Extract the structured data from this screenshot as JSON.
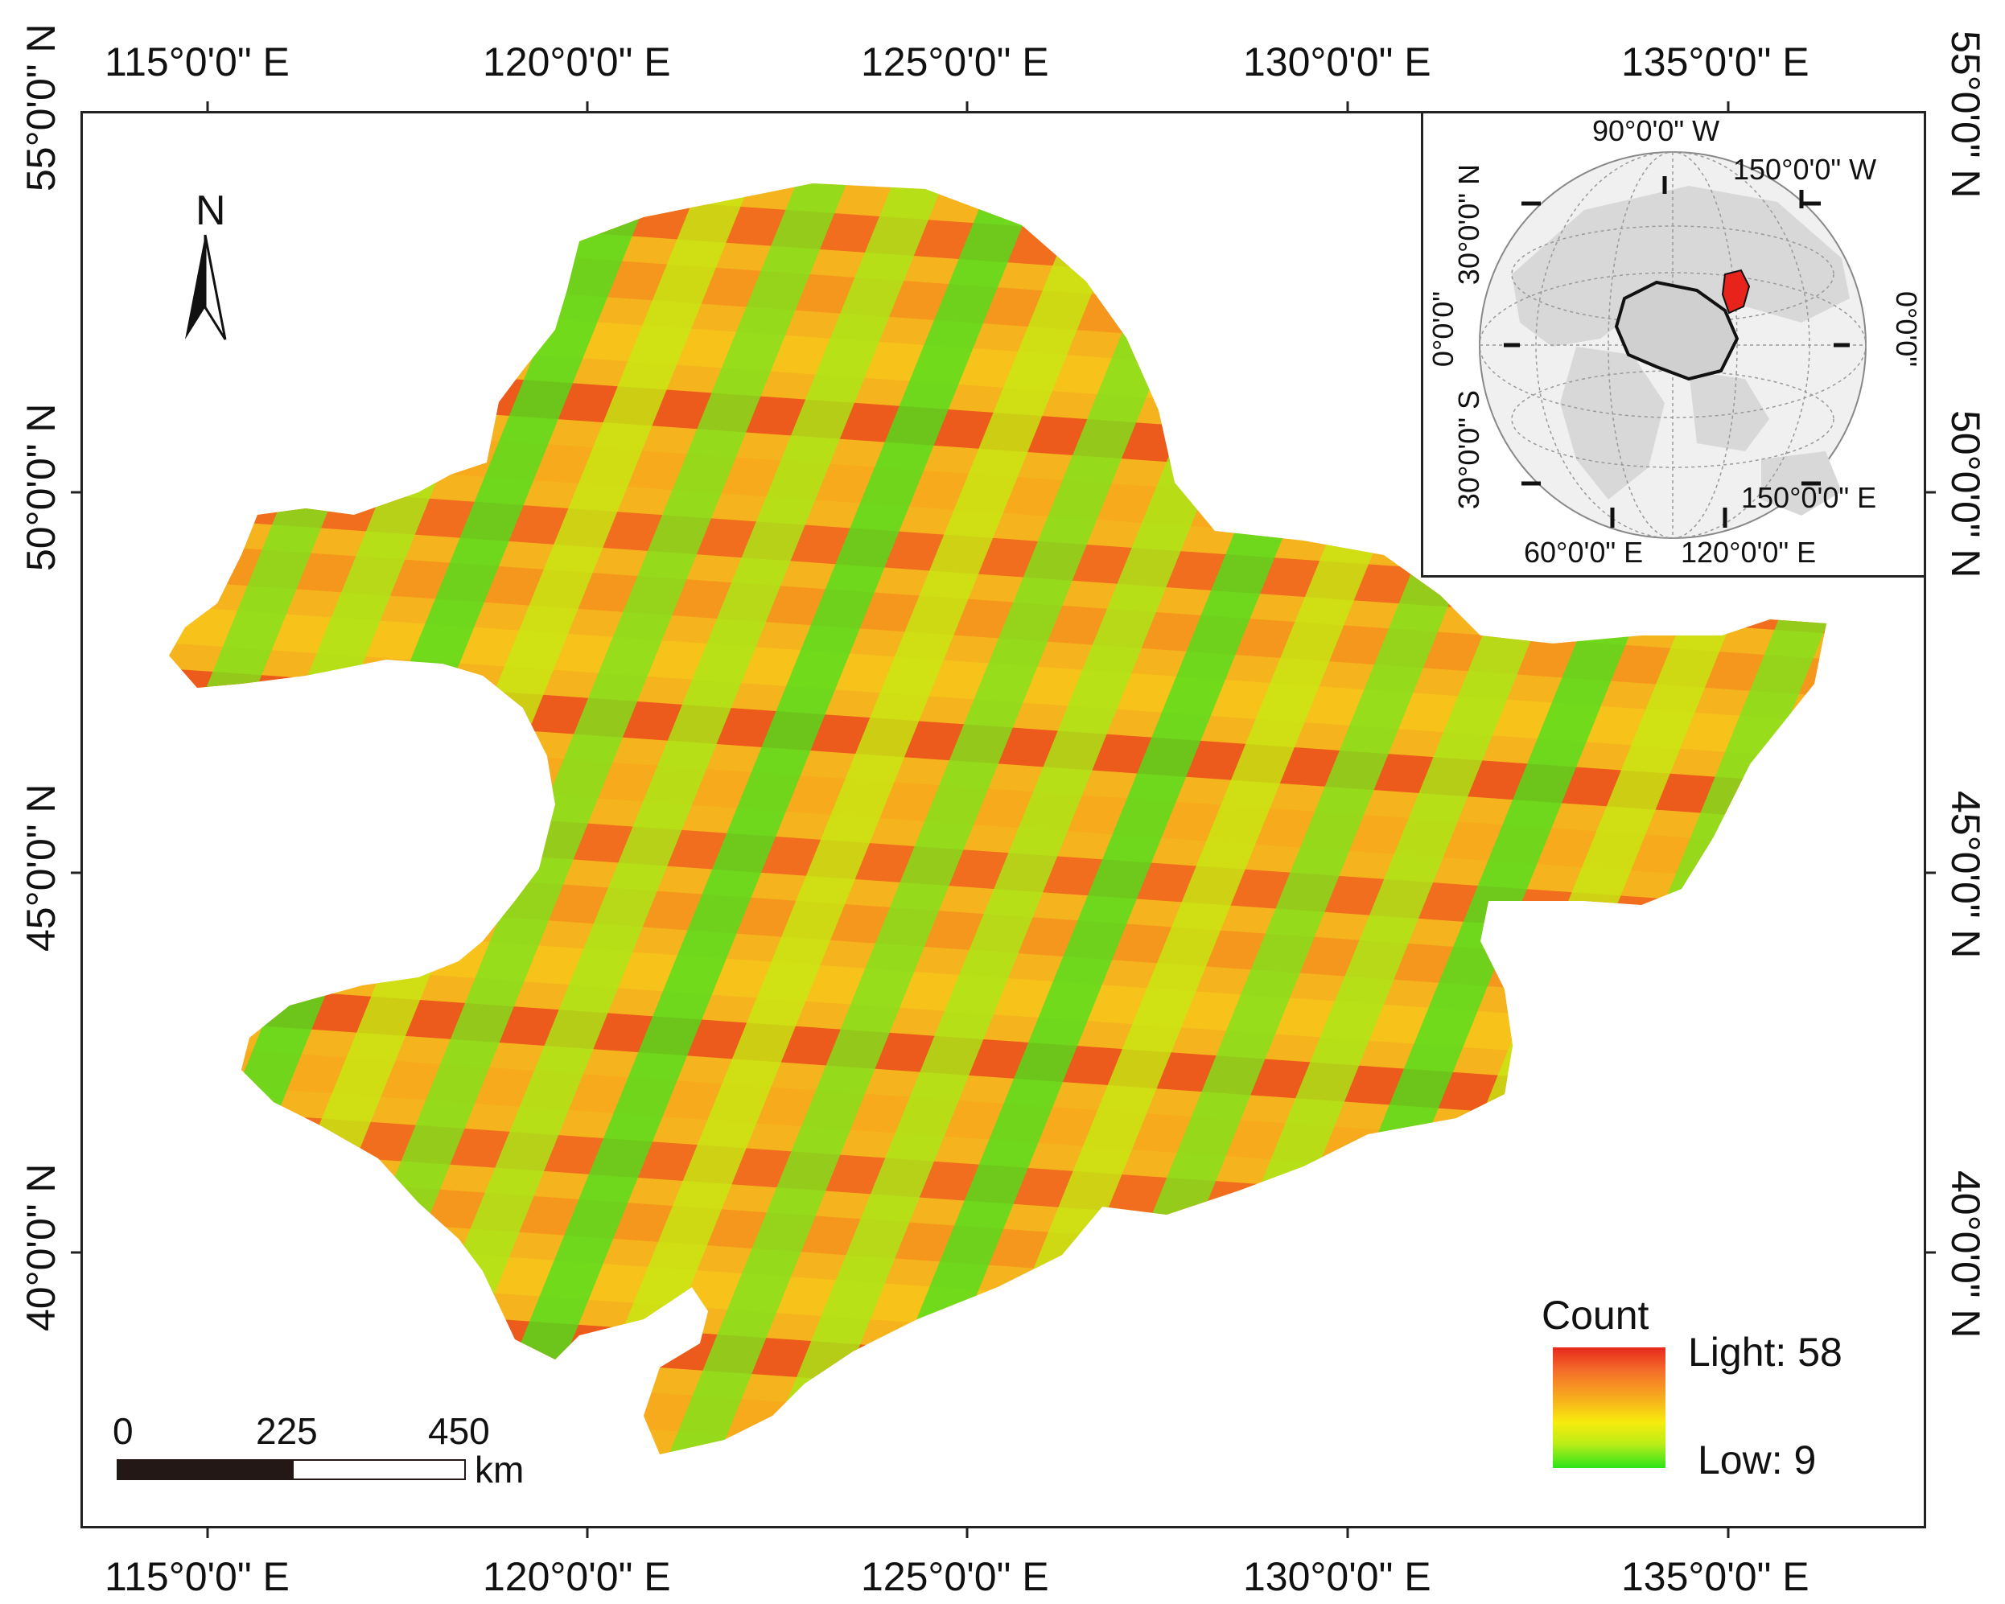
{
  "map": {
    "lon_labels": [
      "115°0'0\" E",
      "120°0'0\" E",
      "125°0'0\" E",
      "130°0'0\" E",
      "135°0'0\" E"
    ],
    "lat_labels": [
      "55°0'0\" N",
      "50°0'0\" N",
      "45°0'0\" N",
      "40°0'0\" N"
    ],
    "north_arrow": {
      "letter": "N",
      "icon": "north-arrow-icon"
    },
    "scale_bar": {
      "ticks": [
        "0",
        "225",
        "450"
      ],
      "unit": "km"
    },
    "legend": {
      "title": "Count",
      "high_label": "Light: 58",
      "low_label": "Low: 9",
      "high_color": "#e6281c",
      "mid_color": "#f7ec0d",
      "low_color": "#2de41b"
    },
    "inset": {
      "labels": {
        "top_w1": "90°0'0\" W",
        "top_w2": "150°0'0\" W",
        "left_n": "30°0'0\" N",
        "left_0": "0°0'0\"",
        "left_s": "30°0'0\" S",
        "right_0": "0°0'0\"",
        "bottom_e1": "150°0'0\" E",
        "bottom_e2": "60°0'0\" E",
        "bottom_e3": "120°0'0\" E"
      },
      "highlight_color": "#e8231c",
      "land_color": "#d8d8d8"
    }
  }
}
